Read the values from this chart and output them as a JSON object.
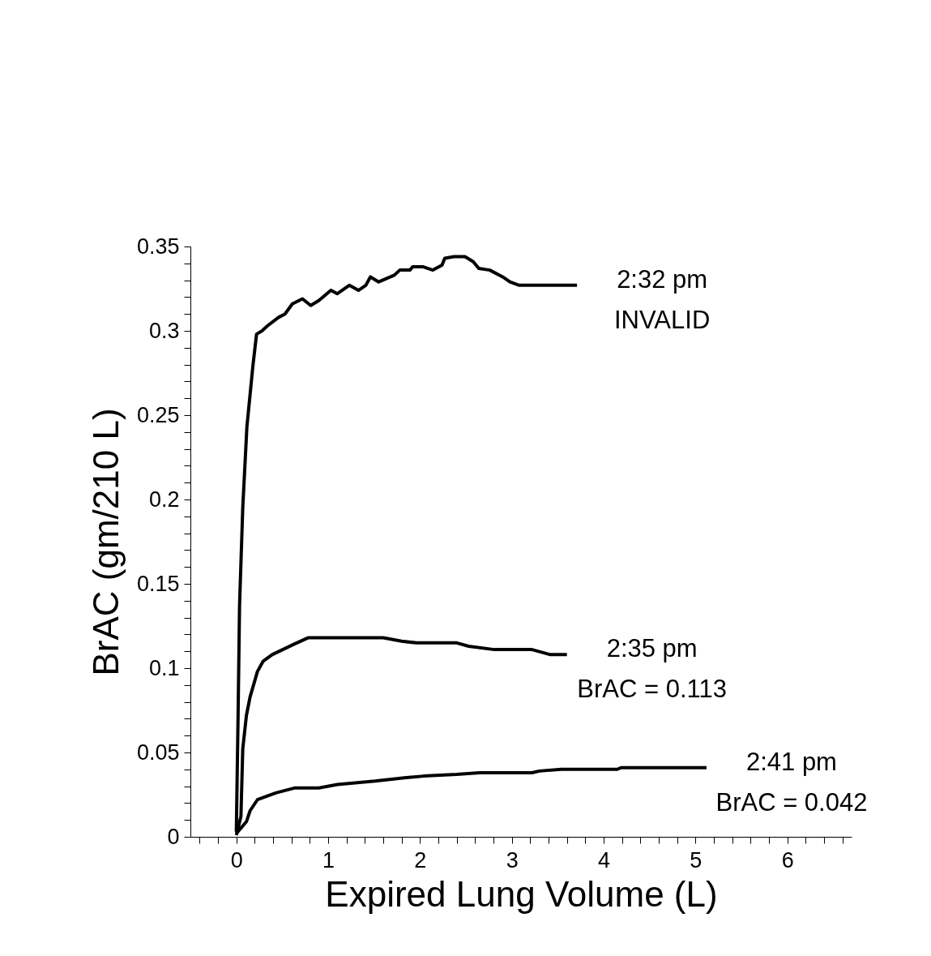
{
  "chart_data": {
    "type": "line",
    "xlabel": "Expired Lung Volume (L)",
    "ylabel": "BrAC  (gm/210 L)",
    "xlim": [
      -0.5,
      6.7
    ],
    "ylim": [
      0,
      0.35
    ],
    "xticks": [
      {
        "value": -0.4,
        "label": null
      },
      {
        "value": -0.2,
        "label": null
      },
      0,
      {
        "value": 0.2,
        "label": null
      },
      {
        "value": 0.4,
        "label": null
      },
      {
        "value": 0.6,
        "label": null
      },
      {
        "value": 0.8,
        "label": null
      },
      1,
      {
        "value": 1.2,
        "label": null
      },
      {
        "value": 1.4,
        "label": null
      },
      {
        "value": 1.6,
        "label": null
      },
      {
        "value": 1.8,
        "label": null
      },
      2,
      {
        "value": 2.2,
        "label": null
      },
      {
        "value": 2.4,
        "label": null
      },
      {
        "value": 2.6,
        "label": null
      },
      {
        "value": 2.8,
        "label": null
      },
      3,
      {
        "value": 3.2,
        "label": null
      },
      {
        "value": 3.4,
        "label": null
      },
      {
        "value": 3.6,
        "label": null
      },
      {
        "value": 3.8,
        "label": null
      },
      4,
      {
        "value": 4.2,
        "label": null
      },
      {
        "value": 4.4,
        "label": null
      },
      {
        "value": 4.6,
        "label": null
      },
      {
        "value": 4.8,
        "label": null
      },
      5,
      {
        "value": 5.2,
        "label": null
      },
      {
        "value": 5.4,
        "label": null
      },
      {
        "value": 5.6,
        "label": null
      },
      {
        "value": 5.8,
        "label": null
      },
      6,
      {
        "value": 6.2,
        "label": null
      },
      {
        "value": 6.4,
        "label": null
      },
      {
        "value": 6.6,
        "label": null
      }
    ],
    "yticks": [
      0,
      {
        "value": 0.01,
        "label": null
      },
      {
        "value": 0.02,
        "label": null
      },
      {
        "value": 0.03,
        "label": null
      },
      {
        "value": 0.04,
        "label": null
      },
      0.05,
      {
        "value": 0.06,
        "label": null
      },
      {
        "value": 0.07,
        "label": null
      },
      {
        "value": 0.08,
        "label": null
      },
      {
        "value": 0.09,
        "label": null
      },
      0.1,
      {
        "value": 0.11,
        "label": null
      },
      {
        "value": 0.12,
        "label": null
      },
      {
        "value": 0.13,
        "label": null
      },
      {
        "value": 0.14,
        "label": null
      },
      0.15,
      {
        "value": 0.16,
        "label": null
      },
      {
        "value": 0.17,
        "label": null
      },
      {
        "value": 0.18,
        "label": null
      },
      {
        "value": 0.19,
        "label": null
      },
      0.2,
      {
        "value": 0.21,
        "label": null
      },
      {
        "value": 0.22,
        "label": null
      },
      {
        "value": 0.23,
        "label": null
      },
      {
        "value": 0.24,
        "label": null
      },
      0.25,
      {
        "value": 0.26,
        "label": null
      },
      {
        "value": 0.27,
        "label": null
      },
      {
        "value": 0.28,
        "label": null
      },
      {
        "value": 0.29,
        "label": null
      },
      0.3,
      {
        "value": 0.31,
        "label": null
      },
      {
        "value": 0.32,
        "label": null
      },
      {
        "value": 0.33,
        "label": null
      },
      {
        "value": 0.34,
        "label": null
      },
      0.35
    ],
    "grid": false,
    "legend": false,
    "marker": "none",
    "line_style": "solid",
    "series": [
      {
        "name": "2:32 pm",
        "color": "#000000",
        "x": [
          0,
          0.02,
          0.035,
          0.07,
          0.115,
          0.18,
          0.22,
          0.28,
          0.34,
          0.46,
          0.53,
          0.61,
          0.72,
          0.81,
          0.9,
          1.03,
          1.1,
          1.23,
          1.33,
          1.41,
          1.46,
          1.55,
          1.72,
          1.78,
          1.89,
          1.92,
          2.03,
          2.14,
          2.24,
          2.27,
          2.37,
          2.49,
          2.58,
          2.64,
          2.76,
          2.9,
          2.98,
          3.08,
          3.71
        ],
        "values": [
          0.003,
          0.075,
          0.137,
          0.195,
          0.243,
          0.279,
          0.298,
          0.3,
          0.303,
          0.308,
          0.31,
          0.316,
          0.319,
          0.315,
          0.318,
          0.324,
          0.322,
          0.327,
          0.324,
          0.327,
          0.332,
          0.329,
          0.333,
          0.336,
          0.336,
          0.338,
          0.338,
          0.336,
          0.339,
          0.343,
          0.344,
          0.344,
          0.341,
          0.337,
          0.336,
          0.332,
          0.329,
          0.327,
          0.327
        ]
      },
      {
        "name": "2:35 pm",
        "color": "#000000",
        "x": [
          0,
          0.05,
          0.07,
          0.11,
          0.15,
          0.23,
          0.29,
          0.39,
          0.62,
          0.78,
          1.6,
          1.8,
          1.96,
          2.4,
          2.53,
          2.81,
          3.22,
          3.42,
          3.6
        ],
        "values": [
          0.001,
          0.012,
          0.052,
          0.072,
          0.083,
          0.098,
          0.104,
          0.108,
          0.114,
          0.118,
          0.118,
          0.116,
          0.115,
          0.115,
          0.113,
          0.111,
          0.111,
          0.108,
          0.108
        ]
      },
      {
        "name": "2:41 pm",
        "color": "#000000",
        "x": [
          0,
          0.11,
          0.15,
          0.23,
          0.43,
          0.64,
          0.9,
          1.1,
          1.51,
          1.83,
          2.04,
          2.4,
          2.65,
          3.22,
          3.3,
          3.54,
          4.15,
          4.19,
          5.12
        ],
        "values": [
          0.002,
          0.009,
          0.0155,
          0.022,
          0.026,
          0.029,
          0.029,
          0.031,
          0.033,
          0.035,
          0.036,
          0.037,
          0.038,
          0.038,
          0.039,
          0.04,
          0.04,
          0.041,
          0.041
        ]
      }
    ],
    "annotations": [
      "INVALID",
      "BrAC = 0.113",
      "BrAC = 0.042"
    ]
  }
}
